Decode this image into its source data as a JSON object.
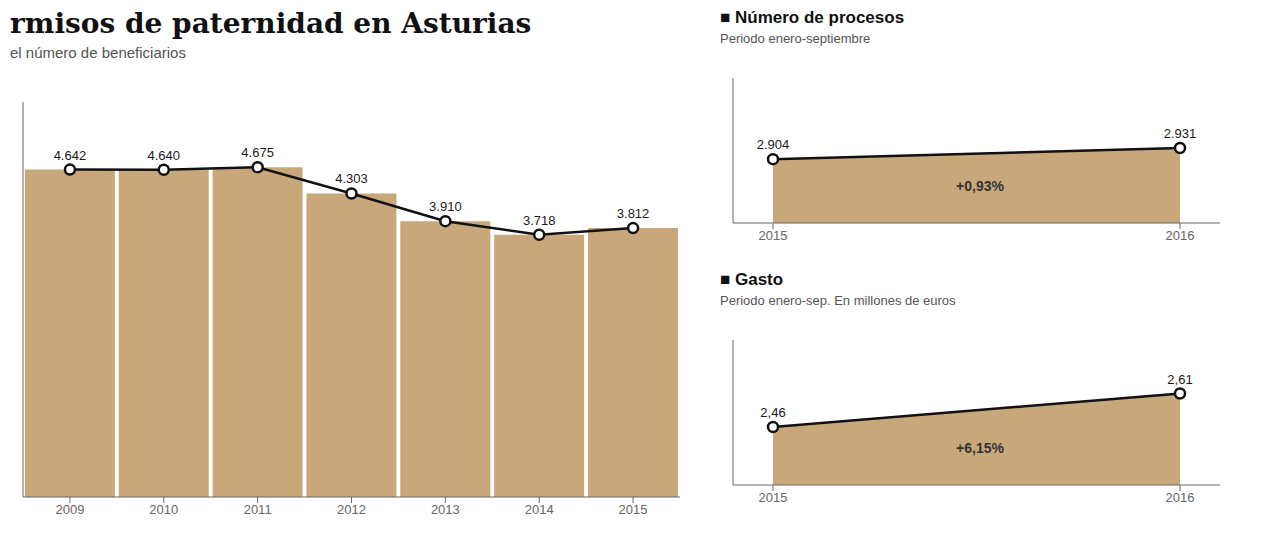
{
  "chart_data": [
    {
      "type": "bar",
      "title": "rmisos de paternidad en Asturias",
      "subtitle": "el número de beneficiarios",
      "categories": [
        "2009",
        "2010",
        "2011",
        "2012",
        "2013",
        "2014",
        "2015"
      ],
      "series": [
        {
          "type": "bar",
          "color": "#c8a87a",
          "values": [
            4642,
            4640,
            4675,
            4303,
            3910,
            3718,
            3812
          ]
        },
        {
          "type": "line",
          "color": "#111111",
          "marker": "o",
          "values": [
            4642,
            4640,
            4675,
            4303,
            3910,
            3718,
            3812
          ],
          "value_labels": [
            "4.642",
            "4.640",
            "4.675",
            "4.303",
            "3.910",
            "3.718",
            "3.812"
          ]
        }
      ],
      "ylim": [
        0,
        5600
      ],
      "data_labels": true,
      "tick_labels": "x"
    },
    {
      "type": "area",
      "title": "■ Número de procesos",
      "subtitle": "Periodo enero-septiembre",
      "categories": [
        "2015",
        "2016"
      ],
      "series": [
        {
          "type": "area",
          "color": "#c8a87a",
          "values": [
            2904,
            2931
          ]
        },
        {
          "type": "line",
          "color": "#111111",
          "marker": "o",
          "values": [
            2904,
            2931
          ],
          "value_labels": [
            "2.904",
            "2.931"
          ]
        }
      ],
      "ylim": [
        2750,
        3100
      ],
      "annotation": "+0,93%",
      "data_labels": true,
      "tick_labels": "x"
    },
    {
      "type": "area",
      "title": "■ Gasto",
      "subtitle": "Periodo enero-sep. En millones de euros",
      "categories": [
        "2015",
        "2016"
      ],
      "series": [
        {
          "type": "area",
          "color": "#c8a87a",
          "values": [
            2.46,
            2.61
          ]
        },
        {
          "type": "line",
          "color": "#111111",
          "marker": "o",
          "values": [
            2.46,
            2.61
          ],
          "value_labels": [
            "2,46",
            "2,61"
          ]
        }
      ],
      "ylim": [
        2.2,
        2.85
      ],
      "annotation": "+6,15%",
      "data_labels": true,
      "tick_labels": "x"
    }
  ]
}
